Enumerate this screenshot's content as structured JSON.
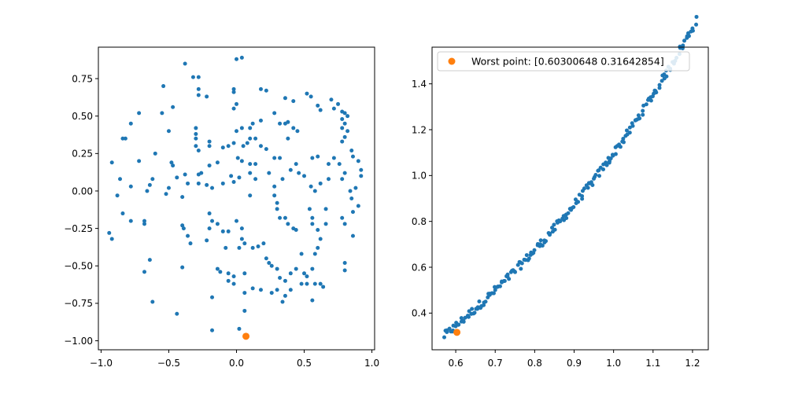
{
  "chart_data": [
    {
      "type": "scatter",
      "xlim": [
        -1.02,
        1.02
      ],
      "ylim": [
        -1.06,
        0.96
      ],
      "xticks": [
        -1.0,
        -0.5,
        0.0,
        0.5,
        1.0
      ],
      "yticks": [
        -1.0,
        -0.75,
        -0.5,
        -0.25,
        0.0,
        0.25,
        0.5,
        0.75
      ],
      "xtick_labels": [
        "−1.0",
        "−0.5",
        "0.0",
        "0.5",
        "1.0"
      ],
      "ytick_labels": [
        "−1.00",
        "−0.75",
        "−0.50",
        "−0.25",
        "0.00",
        "0.25",
        "0.50",
        "0.75"
      ],
      "grid": false,
      "series": [
        {
          "color": "#1f77b4",
          "marker_size": "small",
          "points": [
            [
              0.0,
              0.88
            ],
            [
              0.04,
              0.89
            ],
            [
              -0.38,
              0.85
            ],
            [
              -0.32,
              0.76
            ],
            [
              -0.28,
              0.76
            ],
            [
              -0.54,
              0.7
            ],
            [
              -0.02,
              0.66
            ],
            [
              -0.02,
              0.68
            ],
            [
              -0.28,
              0.68
            ],
            [
              -0.22,
              0.63
            ],
            [
              -0.28,
              0.64
            ],
            [
              0.18,
              0.68
            ],
            [
              0.22,
              0.67
            ],
            [
              0.36,
              0.62
            ],
            [
              0.42,
              0.6
            ],
            [
              0.52,
              0.65
            ],
            [
              0.55,
              0.63
            ],
            [
              0.6,
              0.57
            ],
            [
              0.7,
              0.61
            ],
            [
              0.75,
              0.58
            ],
            [
              0.72,
              0.55
            ],
            [
              0.62,
              0.54
            ],
            [
              -0.72,
              0.52
            ],
            [
              -0.47,
              0.56
            ],
            [
              -0.55,
              0.52
            ],
            [
              -0.78,
              0.45
            ],
            [
              -0.72,
              0.2
            ],
            [
              -0.6,
              0.25
            ],
            [
              -0.84,
              0.35
            ],
            [
              -0.82,
              0.35
            ],
            [
              -0.92,
              0.19
            ],
            [
              0.78,
              0.53
            ],
            [
              0.8,
              0.52
            ],
            [
              0.78,
              0.48
            ],
            [
              0.8,
              0.45
            ],
            [
              0.82,
              0.5
            ],
            [
              0.78,
              0.42
            ],
            [
              0.82,
              0.4
            ],
            [
              0.8,
              0.36
            ],
            [
              0.78,
              0.33
            ],
            [
              0.85,
              0.27
            ],
            [
              0.86,
              0.23
            ],
            [
              0.9,
              0.2
            ],
            [
              0.92,
              0.14
            ],
            [
              0.92,
              0.1
            ],
            [
              0.88,
              0.02
            ],
            [
              0.84,
              0.0
            ],
            [
              0.85,
              -0.05
            ],
            [
              -0.5,
              0.4
            ],
            [
              -0.3,
              0.42
            ],
            [
              -0.3,
              0.38
            ],
            [
              -0.3,
              0.35
            ],
            [
              -0.3,
              0.3
            ],
            [
              -0.28,
              0.27
            ],
            [
              -0.2,
              0.33
            ],
            [
              -0.2,
              0.3
            ],
            [
              -0.1,
              0.29
            ],
            [
              0.0,
              0.4
            ],
            [
              0.04,
              0.42
            ],
            [
              0.1,
              0.35
            ],
            [
              0.14,
              0.35
            ],
            [
              0.18,
              0.3
            ],
            [
              0.22,
              0.28
            ],
            [
              -0.06,
              0.3
            ],
            [
              -0.02,
              0.32
            ],
            [
              0.05,
              0.3
            ],
            [
              0.08,
              0.32
            ],
            [
              0.1,
              0.42
            ],
            [
              0.12,
              0.45
            ],
            [
              0.18,
              0.47
            ],
            [
              0.28,
              0.52
            ],
            [
              0.32,
              0.45
            ],
            [
              0.36,
              0.45
            ],
            [
              0.38,
              0.46
            ],
            [
              0.42,
              0.42
            ],
            [
              0.45,
              0.4
            ],
            [
              0.38,
              0.35
            ],
            [
              -0.02,
              0.55
            ],
            [
              0.0,
              0.58
            ],
            [
              0.1,
              0.18
            ],
            [
              0.14,
              0.18
            ],
            [
              0.28,
              0.22
            ],
            [
              0.32,
              0.22
            ],
            [
              0.24,
              0.12
            ],
            [
              0.14,
              0.08
            ],
            [
              0.34,
              0.08
            ],
            [
              -0.48,
              0.19
            ],
            [
              -0.47,
              0.17
            ],
            [
              -0.44,
              0.09
            ],
            [
              -0.38,
              0.11
            ],
            [
              -0.28,
              0.11
            ],
            [
              -0.26,
              0.12
            ],
            [
              -0.2,
              0.17
            ],
            [
              -0.14,
              0.19
            ],
            [
              0.01,
              0.22
            ],
            [
              0.04,
              0.2
            ],
            [
              0.1,
              0.12
            ],
            [
              -0.04,
              0.1
            ],
            [
              0.44,
              0.18
            ],
            [
              0.4,
              0.14
            ],
            [
              0.46,
              0.12
            ],
            [
              0.5,
              0.1
            ],
            [
              0.56,
              0.22
            ],
            [
              0.6,
              0.23
            ],
            [
              0.68,
              0.18
            ],
            [
              0.72,
              0.22
            ],
            [
              0.76,
              0.18
            ],
            [
              0.8,
              0.12
            ],
            [
              0.78,
              0.08
            ],
            [
              0.68,
              0.08
            ],
            [
              0.62,
              0.05
            ],
            [
              0.55,
              0.03
            ],
            [
              0.58,
              0.0
            ],
            [
              -0.62,
              0.08
            ],
            [
              -0.64,
              0.04
            ],
            [
              -0.66,
              0.0
            ],
            [
              -0.78,
              0.03
            ],
            [
              -0.86,
              0.08
            ],
            [
              -0.88,
              -0.03
            ],
            [
              -0.5,
              0.02
            ],
            [
              -0.52,
              -0.02
            ],
            [
              -0.36,
              0.05
            ],
            [
              -0.4,
              -0.04
            ],
            [
              -0.28,
              0.05
            ],
            [
              -0.22,
              0.04
            ],
            [
              -0.18,
              0.02
            ],
            [
              -0.1,
              0.05
            ],
            [
              -0.02,
              0.06
            ],
            [
              0.02,
              0.09
            ],
            [
              0.1,
              -0.03
            ],
            [
              0.28,
              0.03
            ],
            [
              0.28,
              -0.03
            ],
            [
              0.3,
              -0.08
            ],
            [
              0.3,
              -0.12
            ],
            [
              0.32,
              -0.18
            ],
            [
              0.36,
              -0.18
            ],
            [
              0.38,
              -0.22
            ],
            [
              0.42,
              -0.25
            ],
            [
              0.44,
              -0.26
            ],
            [
              0.54,
              -0.12
            ],
            [
              0.56,
              -0.18
            ],
            [
              0.56,
              -0.22
            ],
            [
              0.6,
              -0.26
            ],
            [
              0.66,
              -0.22
            ],
            [
              0.66,
              -0.12
            ],
            [
              0.62,
              -0.32
            ],
            [
              0.6,
              -0.38
            ],
            [
              0.58,
              -0.42
            ],
            [
              0.9,
              -0.1
            ],
            [
              0.86,
              -0.14
            ],
            [
              0.78,
              -0.18
            ],
            [
              0.8,
              -0.22
            ],
            [
              0.86,
              -0.3
            ],
            [
              0.8,
              -0.48
            ],
            [
              0.8,
              -0.53
            ],
            [
              -0.68,
              -0.2
            ],
            [
              -0.68,
              -0.22
            ],
            [
              -0.78,
              -0.2
            ],
            [
              -0.84,
              -0.15
            ],
            [
              -0.94,
              -0.28
            ],
            [
              -0.92,
              -0.32
            ],
            [
              -0.4,
              -0.23
            ],
            [
              -0.39,
              -0.25
            ],
            [
              -0.36,
              -0.3
            ],
            [
              -0.34,
              -0.35
            ],
            [
              -0.2,
              -0.15
            ],
            [
              -0.18,
              -0.2
            ],
            [
              -0.2,
              -0.25
            ],
            [
              -0.14,
              -0.22
            ],
            [
              -0.1,
              -0.27
            ],
            [
              -0.06,
              -0.27
            ],
            [
              0.0,
              -0.2
            ],
            [
              0.04,
              -0.25
            ],
            [
              0.04,
              -0.32
            ],
            [
              0.02,
              -0.38
            ],
            [
              0.06,
              -0.35
            ],
            [
              0.12,
              -0.38
            ],
            [
              0.16,
              -0.37
            ],
            [
              0.2,
              -0.35
            ],
            [
              0.22,
              -0.45
            ],
            [
              0.24,
              -0.48
            ],
            [
              0.26,
              -0.5
            ],
            [
              0.3,
              -0.52
            ],
            [
              0.32,
              -0.58
            ],
            [
              0.36,
              -0.6
            ],
            [
              0.4,
              -0.55
            ],
            [
              0.44,
              -0.52
            ],
            [
              0.5,
              -0.55
            ],
            [
              0.52,
              -0.57
            ],
            [
              0.56,
              -0.52
            ],
            [
              0.48,
              -0.42
            ],
            [
              -0.22,
              -0.33
            ],
            [
              -0.08,
              -0.38
            ],
            [
              -0.14,
              -0.52
            ],
            [
              -0.12,
              -0.54
            ],
            [
              -0.06,
              -0.55
            ],
            [
              -0.02,
              -0.57
            ],
            [
              -0.06,
              -0.6
            ],
            [
              -0.02,
              -0.62
            ],
            [
              0.06,
              -0.55
            ],
            [
              0.06,
              -0.68
            ],
            [
              0.12,
              -0.65
            ],
            [
              0.18,
              -0.66
            ],
            [
              0.26,
              -0.68
            ],
            [
              0.3,
              -0.66
            ],
            [
              0.36,
              -0.7
            ],
            [
              0.4,
              -0.66
            ],
            [
              0.48,
              -0.62
            ],
            [
              0.52,
              -0.62
            ],
            [
              0.58,
              -0.62
            ],
            [
              0.62,
              -0.62
            ],
            [
              0.64,
              -0.64
            ],
            [
              0.56,
              -0.73
            ],
            [
              0.34,
              -0.74
            ],
            [
              0.06,
              -0.8
            ],
            [
              0.02,
              -0.92
            ],
            [
              -0.64,
              -0.46
            ],
            [
              -0.68,
              -0.54
            ],
            [
              -0.4,
              -0.51
            ],
            [
              -0.62,
              -0.74
            ],
            [
              -0.44,
              -0.82
            ],
            [
              -0.18,
              -0.71
            ],
            [
              -0.18,
              -0.93
            ]
          ]
        },
        {
          "color": "#ff7f0e",
          "marker_size": "large",
          "points": [
            [
              0.07,
              -0.97
            ]
          ]
        }
      ]
    },
    {
      "type": "scatter",
      "xlim": [
        0.54,
        1.24
      ],
      "ylim": [
        0.24,
        1.56
      ],
      "xticks": [
        0.6,
        0.7,
        0.8,
        0.9,
        1.0,
        1.1,
        1.2
      ],
      "yticks": [
        0.4,
        0.6,
        0.8,
        1.0,
        1.2,
        1.4
      ],
      "xtick_labels": [
        "0.6",
        "0.7",
        "0.8",
        "0.9",
        "1.0",
        "1.1",
        "1.2"
      ],
      "ytick_labels": [
        "0.4",
        "0.6",
        "0.8",
        "1.0",
        "1.2",
        "1.4"
      ],
      "grid": false,
      "legend": {
        "placement": "upper-left",
        "entries": [
          "Worst point: [0.60300648 0.31642854]"
        ]
      },
      "series": [
        {
          "color": "#1f77b4",
          "marker_size": "small",
          "curve": {
            "x_start": 0.57,
            "x_end": 1.21,
            "count": 200,
            "y_coeffs": [
              0.3,
              1.44,
              0.655,
              0.71
            ],
            "jitter": 0.018
          }
        },
        {
          "color": "#ff7f0e",
          "marker_size": "large",
          "points": [
            [
              0.603,
              0.316
            ]
          ]
        }
      ]
    }
  ]
}
